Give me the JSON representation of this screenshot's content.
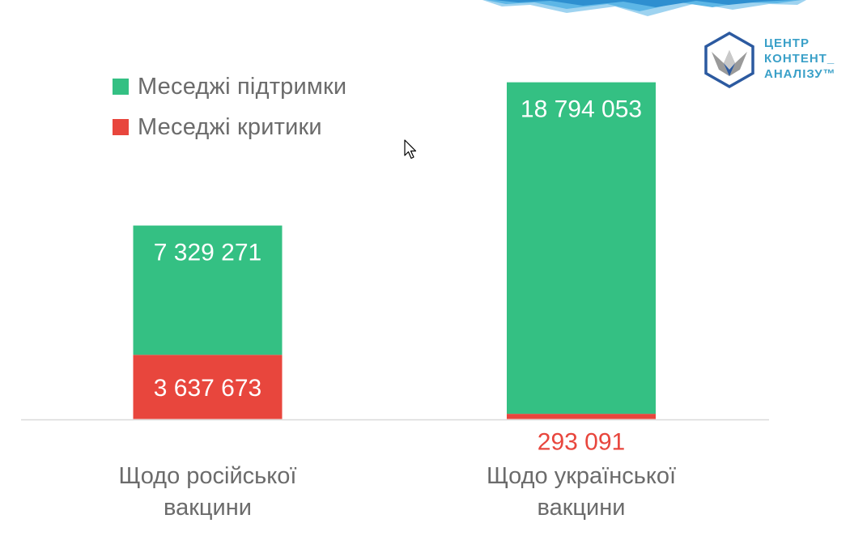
{
  "chart_data": {
    "type": "bar",
    "stacked": true,
    "categories": [
      [
        "Щодо російської",
        "вакцини"
      ],
      [
        "Щодо української",
        "вакцини"
      ]
    ],
    "series": [
      {
        "name": "Меседжі підтримки",
        "color": "#34c083",
        "values": [
          7329271,
          18794053
        ],
        "labels": [
          "7 329 271",
          "18 794 053"
        ]
      },
      {
        "name": "Меседжі критики",
        "color": "#e8463d",
        "values": [
          3637673,
          293091
        ],
        "labels": [
          "3 637 673",
          "293 091"
        ]
      }
    ],
    "ylim": [
      0,
      19300000
    ],
    "grid": false,
    "legend": "top-left"
  },
  "logo": {
    "lines": [
      "ЦЕНТР",
      "КОНТЕНТ_",
      "АНАЛІЗУ™"
    ],
    "icon": "logo-hexagon-icon",
    "color": "#3aa0c8"
  },
  "decoration": {
    "icon": "wave-banner-icon",
    "colors": [
      "#2e8fd0",
      "#5db6e6",
      "#9ed3f0"
    ]
  },
  "cursor": {
    "icon": "mouse-pointer-icon"
  }
}
